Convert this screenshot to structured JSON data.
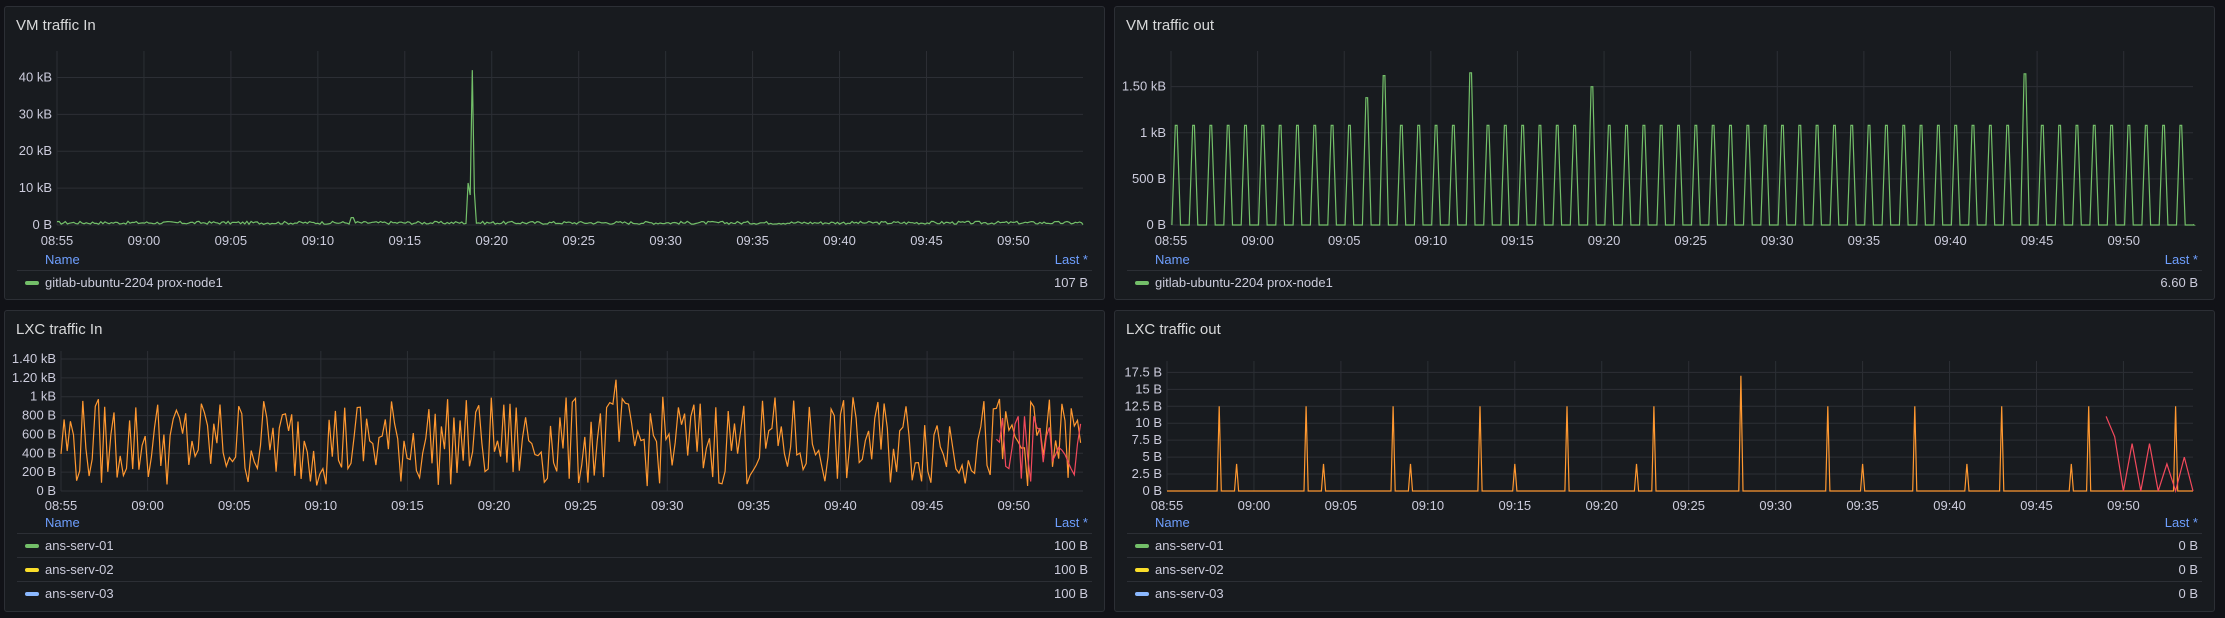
{
  "colors": {
    "green": "#73bf69",
    "yellow": "#fade2a",
    "blue": "#8ab8ff",
    "orange": "#ff9830",
    "red": "#f2495c"
  },
  "panels": [
    {
      "title": "VM traffic In",
      "legend": {
        "name_header": "Name",
        "last_header": "Last *",
        "rows": [
          {
            "name": "gitlab-ubuntu-2204 prox-node1",
            "value": "107 B",
            "color": "green"
          }
        ]
      },
      "chart_data": {
        "type": "line",
        "x_ticks": [
          "08:55",
          "09:00",
          "09:05",
          "09:10",
          "09:15",
          "09:20",
          "09:25",
          "09:30",
          "09:35",
          "09:40",
          "09:45",
          "09:50"
        ],
        "y_ticks": [
          "0 B",
          "10 kB",
          "20 kB",
          "30 kB",
          "40 kB"
        ],
        "ylim": [
          0,
          45
        ],
        "y_unit": "kB",
        "xlim": [
          "08:55",
          "09:54"
        ],
        "series": [
          {
            "color": "green",
            "baseline": 0.6,
            "noise": 0.5,
            "spikes": [
              {
                "x": "09:18:50",
                "y": 42
              }
            ],
            "final": 0.1
          }
        ]
      }
    },
    {
      "title": "VM traffic out",
      "legend": {
        "name_header": "Name",
        "last_header": "Last *",
        "rows": [
          {
            "name": "gitlab-ubuntu-2204 prox-node1",
            "value": "6.60 B",
            "color": "green"
          }
        ]
      },
      "chart_data": {
        "type": "line",
        "x_ticks": [
          "08:55",
          "09:00",
          "09:05",
          "09:10",
          "09:15",
          "09:20",
          "09:25",
          "09:30",
          "09:35",
          "09:40",
          "09:45",
          "09:50"
        ],
        "y_ticks": [
          "0 B",
          "500 B",
          "1 kB",
          "1.50 kB"
        ],
        "ylim": [
          0,
          1800
        ],
        "y_unit": "B",
        "xlim": [
          "08:55",
          "09:54"
        ],
        "series": [
          {
            "color": "green",
            "pulse_period_min": 0.5,
            "pulse_height": 1080,
            "tall_pulses": [
              {
                "x": "09:06",
                "y": 1380
              },
              {
                "x": "09:07",
                "y": 1620
              },
              {
                "x": "09:12",
                "y": 1650
              },
              {
                "x": "09:19",
                "y": 1500
              },
              {
                "x": "09:44",
                "y": 1640
              }
            ],
            "final": 6.6
          }
        ]
      }
    },
    {
      "title": "LXC traffic In",
      "legend": {
        "name_header": "Name",
        "last_header": "Last *",
        "rows": [
          {
            "name": "ans-serv-01",
            "value": "100 B",
            "color": "green"
          },
          {
            "name": "ans-serv-02",
            "value": "100 B",
            "color": "yellow"
          },
          {
            "name": "ans-serv-03",
            "value": "100 B",
            "color": "blue"
          }
        ]
      },
      "chart_data": {
        "type": "line",
        "x_ticks": [
          "08:55",
          "09:00",
          "09:05",
          "09:10",
          "09:15",
          "09:20",
          "09:25",
          "09:30",
          "09:35",
          "09:40",
          "09:45",
          "09:50"
        ],
        "y_ticks": [
          "0 B",
          "200 B",
          "400 B",
          "600 B",
          "800 B",
          "1 kB",
          "1.20 kB",
          "1.40 kB"
        ],
        "ylim": [
          0,
          1400
        ],
        "y_unit": "B",
        "xlim": [
          "08:55",
          "09:54"
        ],
        "series": [
          {
            "color": "orange",
            "range": [
              50,
              1000
            ],
            "peak": 1180
          },
          {
            "color": "red",
            "range": [
              100,
              800
            ],
            "start": "09:49"
          }
        ]
      }
    },
    {
      "title": "LXC traffic out",
      "legend": {
        "name_header": "Name",
        "last_header": "Last *",
        "rows": [
          {
            "name": "ans-serv-01",
            "value": "0 B",
            "color": "green"
          },
          {
            "name": "ans-serv-02",
            "value": "0 B",
            "color": "yellow"
          },
          {
            "name": "ans-serv-03",
            "value": "0 B",
            "color": "blue"
          }
        ]
      },
      "chart_data": {
        "type": "line",
        "x_ticks": [
          "08:55",
          "09:00",
          "09:05",
          "09:10",
          "09:15",
          "09:20",
          "09:25",
          "09:30",
          "09:35",
          "09:40",
          "09:45",
          "09:50"
        ],
        "y_ticks": [
          "0 B",
          "2.5 B",
          "5 B",
          "7.5 B",
          "10 B",
          "12.5 B",
          "15 B",
          "17.5 B"
        ],
        "ylim": [
          0,
          18
        ],
        "y_unit": "B",
        "xlim": [
          "08:55",
          "09:54"
        ],
        "series": [
          {
            "color": "orange",
            "tall_spikes": [
              {
                "x": "08:58",
                "y": 12.5
              },
              {
                "x": "09:03",
                "y": 12.5
              },
              {
                "x": "09:08",
                "y": 12.5
              },
              {
                "x": "09:13",
                "y": 12.5
              },
              {
                "x": "09:18",
                "y": 12.5
              },
              {
                "x": "09:23",
                "y": 12.5
              },
              {
                "x": "09:28",
                "y": 17
              },
              {
                "x": "09:33",
                "y": 12.5
              },
              {
                "x": "09:38",
                "y": 12.5
              },
              {
                "x": "09:43",
                "y": 12.5
              },
              {
                "x": "09:48",
                "y": 12.5
              },
              {
                "x": "09:53",
                "y": 12.5
              }
            ],
            "small_spikes": [
              {
                "x": "08:59",
                "y": 4
              },
              {
                "x": "09:04",
                "y": 4
              },
              {
                "x": "09:09",
                "y": 4
              },
              {
                "x": "09:15",
                "y": 4
              },
              {
                "x": "09:22",
                "y": 4
              },
              {
                "x": "09:35",
                "y": 4
              },
              {
                "x": "09:41",
                "y": 4
              },
              {
                "x": "09:47",
                "y": 4
              }
            ]
          },
          {
            "color": "red",
            "start": "09:49",
            "values": [
              11,
              8,
              0,
              7,
              0,
              7,
              0,
              4,
              0,
              5,
              0
            ]
          }
        ]
      }
    }
  ]
}
